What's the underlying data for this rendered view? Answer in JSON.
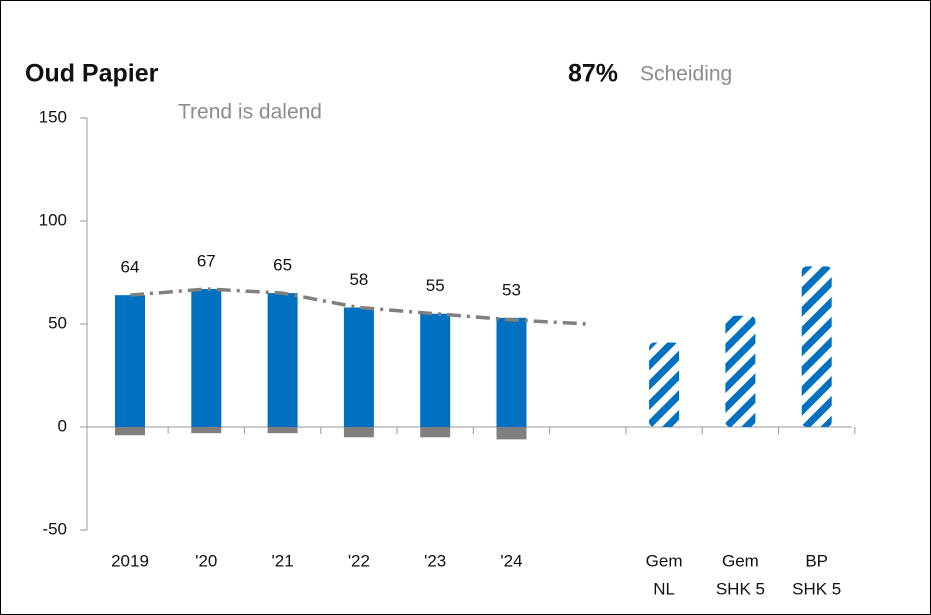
{
  "chart_data": {
    "type": "bar",
    "title": "Oud Papier",
    "headline_value": "87%",
    "headline_label": "Scheiding",
    "annotation": "Trend is dalend",
    "categories": [
      [
        "2019"
      ],
      [
        "'20"
      ],
      [
        "'21"
      ],
      [
        "'22"
      ],
      [
        "'23"
      ],
      [
        "'24"
      ],
      null,
      [
        "Gem",
        "NL"
      ],
      [
        "Gem",
        "SHK 5"
      ],
      [
        "BP",
        "SHK 5"
      ]
    ],
    "ylim": [
      -50,
      150
    ],
    "yticks": [
      -50,
      0,
      50,
      100,
      150
    ],
    "series": [
      {
        "color": "#0070c0",
        "style": "solid",
        "values": [
          64,
          67,
          65,
          58,
          55,
          53,
          null,
          null,
          null,
          null
        ],
        "show_labels": true
      },
      {
        "color": "#7f7f7f",
        "style": "solid",
        "values": [
          -4,
          -3,
          -3,
          -5,
          -5,
          -6,
          null,
          null,
          null,
          null
        ]
      },
      {
        "color": "#0070c0",
        "style": "hatched",
        "values": [
          null,
          null,
          null,
          null,
          null,
          null,
          null,
          41,
          54,
          78
        ]
      },
      {
        "color": "#808080",
        "style": "trend",
        "values": [
          64,
          67,
          65,
          58,
          55,
          52,
          50,
          null,
          null,
          null
        ]
      }
    ]
  }
}
